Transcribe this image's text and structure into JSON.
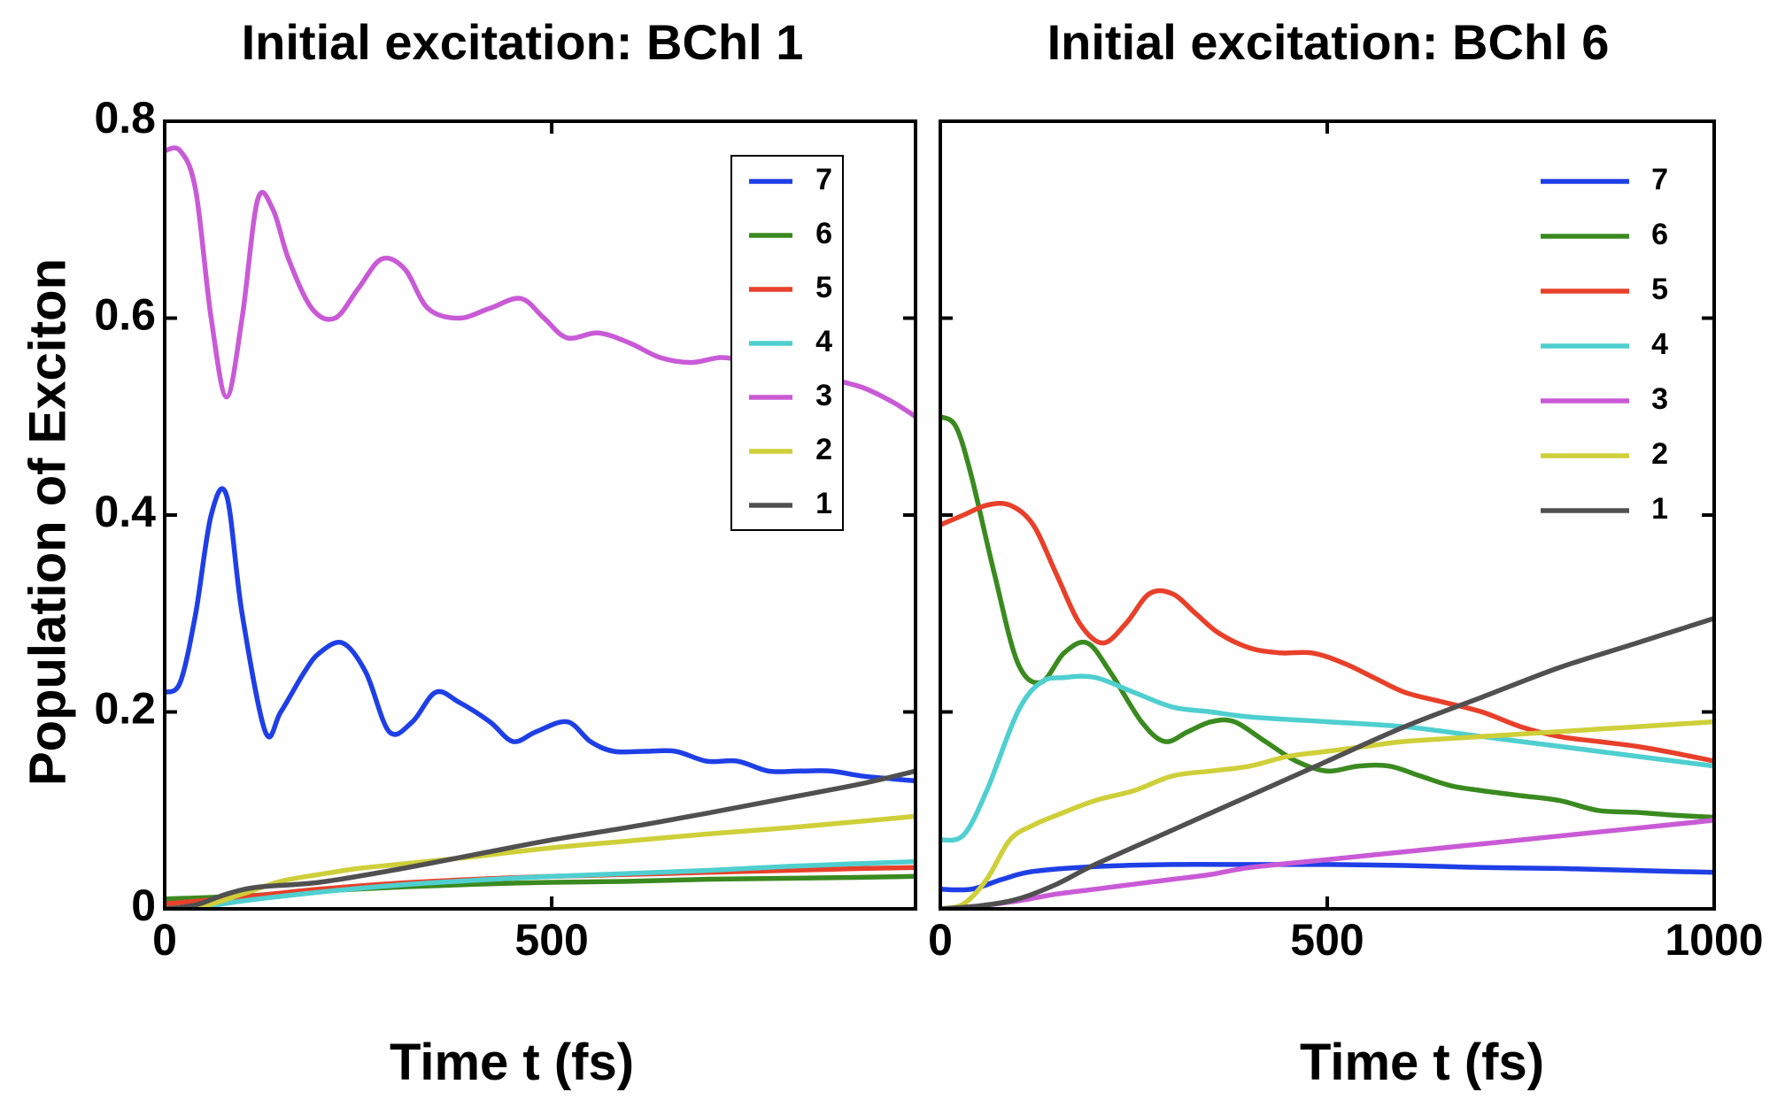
{
  "charts": [
    {
      "type": "line",
      "title": "Initial excitation: BChl 1",
      "xlabel": "Time t (fs)",
      "ylabel": "Population of Exciton",
      "xlim": [
        0,
        970
      ],
      "ylim": [
        0,
        0.8
      ],
      "xticks": [
        0,
        500
      ],
      "yticks": [
        0,
        0.2,
        0.4,
        0.6,
        0.8
      ],
      "xtick_labels": [
        "0",
        "500"
      ],
      "ytick_labels": [
        "0",
        "0.2",
        "0.4",
        "0.6",
        "0.8"
      ],
      "grid": false,
      "legend": {
        "placement": "top-right",
        "boxed": true
      },
      "series": [
        {
          "name": "7",
          "color": "#1f3fe6",
          "x": [
            0,
            20,
            40,
            60,
            80,
            100,
            130,
            150,
            180,
            200,
            230,
            260,
            290,
            320,
            350,
            380,
            420,
            450,
            480,
            520,
            550,
            580,
            620,
            660,
            700,
            740,
            780,
            820,
            860,
            900,
            940,
            970
          ],
          "y": [
            0.22,
            0.23,
            0.3,
            0.4,
            0.42,
            0.3,
            0.18,
            0.2,
            0.24,
            0.26,
            0.27,
            0.24,
            0.18,
            0.19,
            0.22,
            0.21,
            0.19,
            0.17,
            0.18,
            0.19,
            0.17,
            0.16,
            0.16,
            0.16,
            0.15,
            0.15,
            0.14,
            0.14,
            0.14,
            0.135,
            0.132,
            0.13
          ]
        },
        {
          "name": "6",
          "color": "#3a8a1f",
          "x": [
            0,
            100,
            200,
            300,
            400,
            500,
            600,
            700,
            800,
            900,
            970
          ],
          "y": [
            0.01,
            0.013,
            0.018,
            0.022,
            0.025,
            0.027,
            0.028,
            0.03,
            0.031,
            0.032,
            0.033
          ]
        },
        {
          "name": "5",
          "color": "#e8402a",
          "x": [
            0,
            100,
            200,
            300,
            400,
            500,
            600,
            700,
            800,
            900,
            970
          ],
          "y": [
            0.005,
            0.012,
            0.02,
            0.026,
            0.03,
            0.033,
            0.035,
            0.037,
            0.039,
            0.041,
            0.042
          ]
        },
        {
          "name": "4",
          "color": "#4fcfcf",
          "x": [
            0,
            50,
            100,
            200,
            300,
            400,
            500,
            600,
            700,
            800,
            900,
            970
          ],
          "y": [
            0,
            0.002,
            0.008,
            0.017,
            0.024,
            0.029,
            0.033,
            0.036,
            0.039,
            0.043,
            0.046,
            0.048
          ]
        },
        {
          "name": "3",
          "color": "#c95ad6",
          "x": [
            0,
            20,
            40,
            60,
            80,
            100,
            120,
            140,
            160,
            190,
            220,
            250,
            280,
            310,
            340,
            380,
            420,
            460,
            490,
            520,
            560,
            600,
            640,
            680,
            720,
            760,
            800,
            850,
            900,
            940,
            970
          ],
          "y": [
            0.77,
            0.77,
            0.73,
            0.6,
            0.52,
            0.6,
            0.72,
            0.71,
            0.66,
            0.61,
            0.6,
            0.63,
            0.66,
            0.65,
            0.61,
            0.6,
            0.61,
            0.62,
            0.6,
            0.58,
            0.585,
            0.575,
            0.56,
            0.555,
            0.56,
            0.555,
            0.55,
            0.54,
            0.53,
            0.515,
            0.5
          ]
        },
        {
          "name": "2",
          "color": "#cfcf3a",
          "x": [
            0,
            50,
            100,
            150,
            200,
            250,
            300,
            350,
            400,
            500,
            600,
            700,
            800,
            900,
            970
          ],
          "y": [
            0,
            0.003,
            0.015,
            0.028,
            0.035,
            0.041,
            0.045,
            0.049,
            0.053,
            0.062,
            0.069,
            0.076,
            0.082,
            0.089,
            0.094
          ]
        },
        {
          "name": "1",
          "color": "#505050",
          "x": [
            0,
            40,
            80,
            120,
            200,
            300,
            400,
            500,
            600,
            700,
            800,
            900,
            970
          ],
          "y": [
            0,
            0.004,
            0.015,
            0.022,
            0.027,
            0.04,
            0.055,
            0.07,
            0.083,
            0.097,
            0.112,
            0.127,
            0.14
          ]
        }
      ]
    },
    {
      "type": "line",
      "title": "Initial excitation: BChl 6",
      "xlabel": "Time t (fs)",
      "ylabel": "",
      "xlim": [
        0,
        1000
      ],
      "ylim": [
        0,
        0.8
      ],
      "xticks": [
        0,
        500,
        1000
      ],
      "yticks": [
        0,
        0.2,
        0.4,
        0.6,
        0.8
      ],
      "xtick_labels": [
        "0",
        "500",
        "1000"
      ],
      "ytick_labels": [],
      "grid": false,
      "legend": {
        "placement": "top-right",
        "boxed": false
      },
      "series": [
        {
          "name": "7",
          "color": "#1f3fe6",
          "x": [
            0,
            40,
            80,
            120,
            200,
            300,
            400,
            500,
            600,
            700,
            800,
            900,
            1000
          ],
          "y": [
            0.02,
            0.02,
            0.03,
            0.038,
            0.043,
            0.045,
            0.045,
            0.045,
            0.044,
            0.042,
            0.041,
            0.039,
            0.037
          ]
        },
        {
          "name": "6",
          "color": "#3a8a1f",
          "x": [
            0,
            20,
            40,
            70,
            100,
            130,
            160,
            190,
            220,
            260,
            290,
            320,
            350,
            380,
            420,
            460,
            500,
            540,
            580,
            620,
            660,
            700,
            750,
            800,
            850,
            900,
            950,
            1000
          ],
          "y": [
            0.5,
            0.49,
            0.44,
            0.34,
            0.25,
            0.23,
            0.26,
            0.27,
            0.24,
            0.19,
            0.17,
            0.18,
            0.19,
            0.19,
            0.17,
            0.15,
            0.14,
            0.145,
            0.145,
            0.135,
            0.125,
            0.12,
            0.115,
            0.11,
            0.1,
            0.098,
            0.095,
            0.093
          ]
        },
        {
          "name": "5",
          "color": "#e8402a",
          "x": [
            0,
            30,
            60,
            90,
            120,
            150,
            180,
            210,
            240,
            270,
            300,
            330,
            360,
            400,
            440,
            480,
            520,
            560,
            600,
            650,
            700,
            750,
            800,
            850,
            900,
            950,
            1000
          ],
          "y": [
            0.39,
            0.4,
            0.41,
            0.41,
            0.39,
            0.34,
            0.29,
            0.27,
            0.29,
            0.32,
            0.32,
            0.3,
            0.28,
            0.265,
            0.26,
            0.26,
            0.25,
            0.235,
            0.22,
            0.21,
            0.2,
            0.185,
            0.175,
            0.17,
            0.165,
            0.158,
            0.15
          ]
        },
        {
          "name": "4",
          "color": "#4fcfcf",
          "x": [
            0,
            30,
            60,
            100,
            130,
            160,
            200,
            250,
            300,
            350,
            400,
            500,
            600,
            700,
            800,
            900,
            1000
          ],
          "y": [
            0.07,
            0.075,
            0.12,
            0.2,
            0.23,
            0.235,
            0.235,
            0.22,
            0.205,
            0.2,
            0.195,
            0.19,
            0.185,
            0.175,
            0.165,
            0.155,
            0.145
          ]
        },
        {
          "name": "3",
          "color": "#c95ad6",
          "x": [
            0,
            50,
            100,
            150,
            200,
            250,
            300,
            350,
            400,
            500,
            600,
            700,
            800,
            900,
            1000
          ],
          "y": [
            0,
            0.003,
            0.008,
            0.015,
            0.02,
            0.025,
            0.03,
            0.035,
            0.042,
            0.05,
            0.058,
            0.066,
            0.074,
            0.082,
            0.09
          ]
        },
        {
          "name": "2",
          "color": "#cfcf3a",
          "x": [
            0,
            30,
            60,
            90,
            120,
            150,
            200,
            250,
            300,
            350,
            400,
            450,
            500,
            550,
            600,
            700,
            800,
            900,
            1000
          ],
          "y": [
            0,
            0.005,
            0.03,
            0.07,
            0.085,
            0.095,
            0.11,
            0.12,
            0.135,
            0.14,
            0.145,
            0.155,
            0.16,
            0.165,
            0.17,
            0.175,
            0.18,
            0.185,
            0.19
          ]
        },
        {
          "name": "1",
          "color": "#505050",
          "x": [
            0,
            50,
            100,
            150,
            200,
            300,
            400,
            500,
            600,
            700,
            800,
            900,
            1000
          ],
          "y": [
            0,
            0.003,
            0.01,
            0.025,
            0.045,
            0.08,
            0.115,
            0.15,
            0.185,
            0.215,
            0.245,
            0.27,
            0.295
          ]
        }
      ]
    }
  ]
}
